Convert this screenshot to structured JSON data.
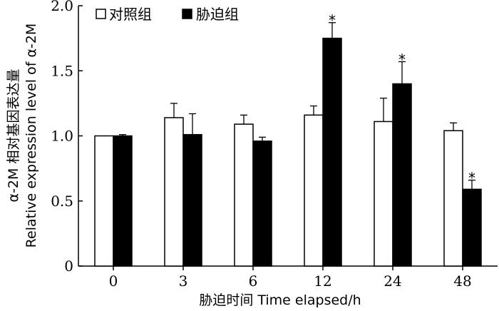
{
  "chart_data": {
    "type": "bar",
    "categories": [
      "0",
      "3",
      "6",
      "12",
      "24",
      "48"
    ],
    "series": [
      {
        "name": "对照组",
        "color": "#ffffff",
        "values": [
          1.0,
          1.14,
          1.09,
          1.16,
          1.11,
          1.04
        ],
        "errors": [
          0.0,
          0.11,
          0.07,
          0.07,
          0.18,
          0.06
        ],
        "significant": [
          false,
          false,
          false,
          false,
          false,
          false
        ]
      },
      {
        "name": "胁迫组",
        "color": "#000000",
        "values": [
          1.0,
          1.01,
          0.96,
          1.75,
          1.4,
          0.59
        ],
        "errors": [
          0.01,
          0.16,
          0.03,
          0.12,
          0.17,
          0.07
        ],
        "significant": [
          false,
          false,
          false,
          true,
          true,
          true
        ]
      }
    ],
    "ylim": [
      0,
      2.0
    ],
    "yticks": [
      "0",
      "0.5",
      "1.0",
      "1.5",
      "2.0"
    ],
    "xlabel": "胁迫时间 Time elapsed/h",
    "ylabel_line1": "α-2M 相对基因表达量",
    "ylabel_line2": "Relative expression level of α-2M",
    "significance_marker": "*",
    "legend_position": "top-left"
  }
}
